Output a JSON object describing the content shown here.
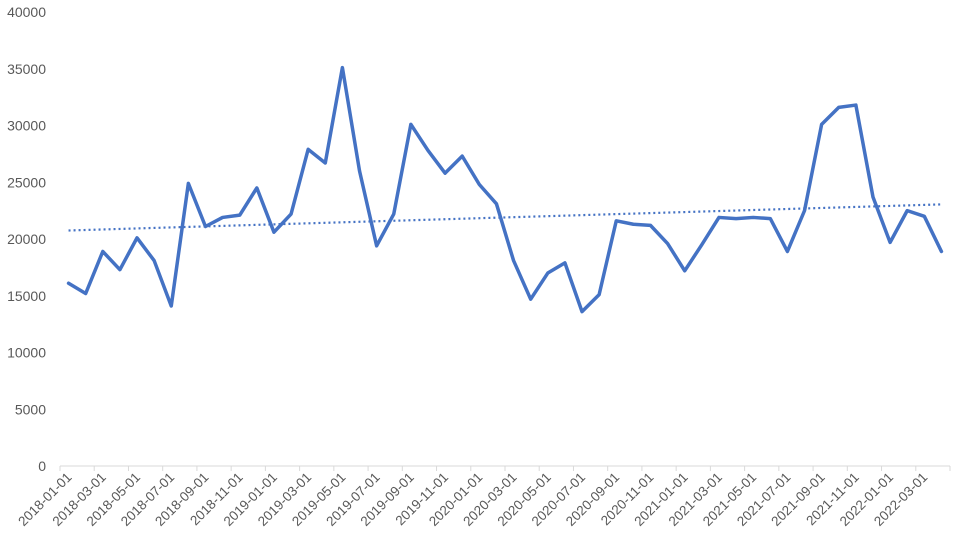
{
  "chart_data": {
    "type": "line",
    "title": "",
    "xlabel": "",
    "ylabel": "",
    "ylim": [
      0,
      40000
    ],
    "yticks": [
      0,
      5000,
      10000,
      15000,
      20000,
      25000,
      30000,
      35000,
      40000
    ],
    "grid": false,
    "legend": "none",
    "x": [
      "2018-01-01",
      "2018-02-01",
      "2018-03-01",
      "2018-04-01",
      "2018-05-01",
      "2018-06-01",
      "2018-07-01",
      "2018-08-01",
      "2018-09-01",
      "2018-10-01",
      "2018-11-01",
      "2018-12-01",
      "2019-01-01",
      "2019-02-01",
      "2019-03-01",
      "2019-04-01",
      "2019-05-01",
      "2019-06-01",
      "2019-07-01",
      "2019-08-01",
      "2019-09-01",
      "2019-10-01",
      "2019-11-01",
      "2019-12-01",
      "2020-01-01",
      "2020-02-01",
      "2020-03-01",
      "2020-04-01",
      "2020-05-01",
      "2020-06-01",
      "2020-07-01",
      "2020-08-01",
      "2020-09-01",
      "2020-10-01",
      "2020-11-01",
      "2020-12-01",
      "2021-01-01",
      "2021-02-01",
      "2021-03-01",
      "2021-04-01",
      "2021-05-01",
      "2021-06-01",
      "2021-07-01",
      "2021-08-01",
      "2021-09-01",
      "2021-10-01",
      "2021-11-01",
      "2021-12-01",
      "2022-01-01",
      "2022-02-01",
      "2022-03-01",
      "2022-04-01"
    ],
    "xtick_labels": [
      "2018-01-01",
      "2018-03-01",
      "2018-05-01",
      "2018-07-01",
      "2018-09-01",
      "2018-11-01",
      "2019-01-01",
      "2019-03-01",
      "2019-05-01",
      "2019-07-01",
      "2019-09-01",
      "2019-11-01",
      "2020-01-01",
      "2020-03-01",
      "2020-05-01",
      "2020-07-01",
      "2020-09-01",
      "2020-11-01",
      "2021-01-01",
      "2021-03-01",
      "2021-05-01",
      "2021-07-01",
      "2021-09-01",
      "2021-11-01",
      "2022-01-01",
      "2022-03-01"
    ],
    "series": [
      {
        "color": "#4472C4",
        "values": [
          16100,
          15200,
          18900,
          17300,
          20100,
          18100,
          14100,
          24900,
          21100,
          21900,
          22100,
          24500,
          20600,
          22200,
          27900,
          26700,
          35100,
          26000,
          19400,
          22200,
          30100,
          27800,
          25800,
          27300,
          24800,
          23100,
          18100,
          14700,
          17000,
          17900,
          13600,
          15100,
          21600,
          21300,
          21200,
          19600,
          17200,
          19500,
          21900,
          21800,
          21900,
          21800,
          18900,
          22500,
          30100,
          31600,
          31800,
          23700,
          19700,
          22500,
          22000,
          18900
        ]
      }
    ],
    "trendline": {
      "style": "dotted",
      "color": "#4472C4",
      "start": 20750,
      "end": 23050
    }
  }
}
